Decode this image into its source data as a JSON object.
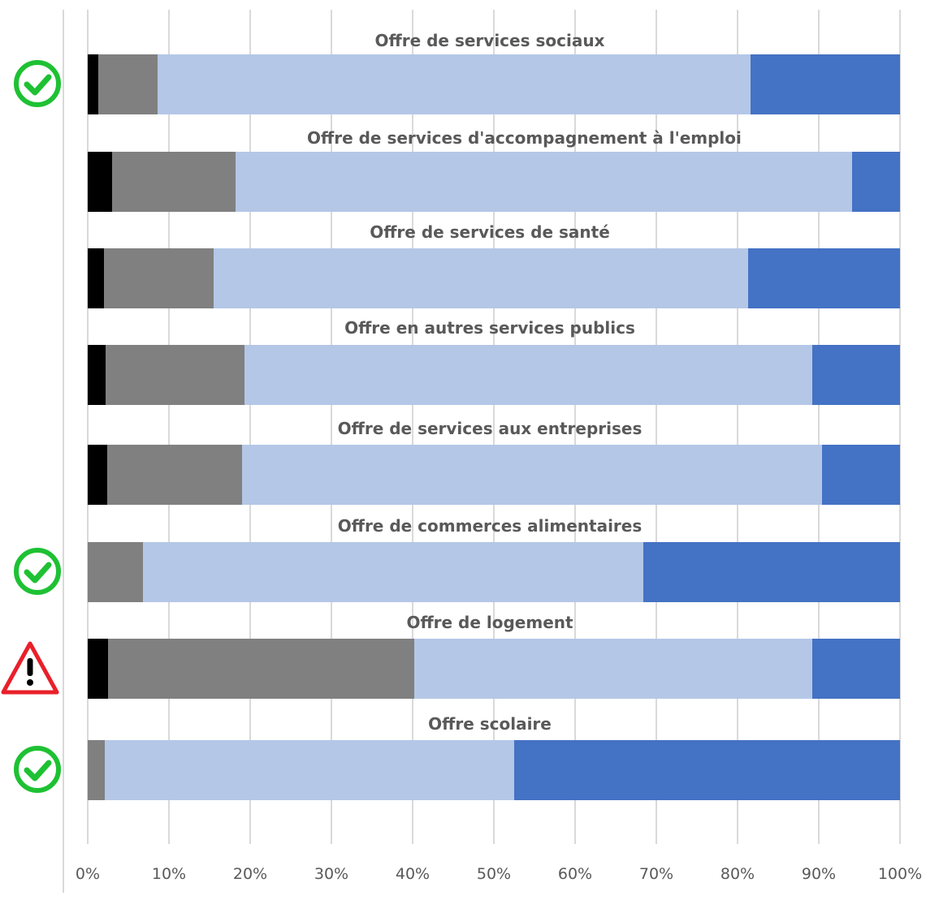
{
  "chart_data": {
    "type": "bar",
    "orientation": "horizontal",
    "stacked": "percent",
    "xlim": [
      0,
      100
    ],
    "x_ticks": [
      "0%",
      "10%",
      "20%",
      "30%",
      "40%",
      "50%",
      "60%",
      "70%",
      "80%",
      "90%",
      "100%"
    ],
    "grid": true,
    "legend": "none",
    "colors": [
      "#000000",
      "#808080",
      "#b4c7e7",
      "#4472c4"
    ],
    "categories": [
      "Offre de services sociaux",
      "Offre de services d'accompagnement à l'emploi",
      "Offre de services de santé",
      "Offre en autres services publics",
      "Offre de services aux entreprises",
      "Offre de commerces alimentaires",
      "Offre de logement",
      "Offre scolaire"
    ],
    "series": [
      {
        "values": [
          1.3,
          3.0,
          2.0,
          2.2,
          2.4,
          0.0,
          2.5,
          0.0
        ]
      },
      {
        "values": [
          7.3,
          15.2,
          13.5,
          17.1,
          16.6,
          6.8,
          37.7,
          2.1
        ]
      },
      {
        "values": [
          73.0,
          75.9,
          65.8,
          69.9,
          71.4,
          61.6,
          49.0,
          50.4
        ]
      },
      {
        "values": [
          18.4,
          5.9,
          18.7,
          10.8,
          9.6,
          31.6,
          10.8,
          47.5
        ]
      }
    ],
    "status_icons": [
      "check-icon",
      null,
      null,
      null,
      null,
      "check-icon",
      "warning-icon",
      "check-icon"
    ],
    "status_colors": {
      "check": "#1ec133",
      "warning": "#e8202a"
    }
  }
}
